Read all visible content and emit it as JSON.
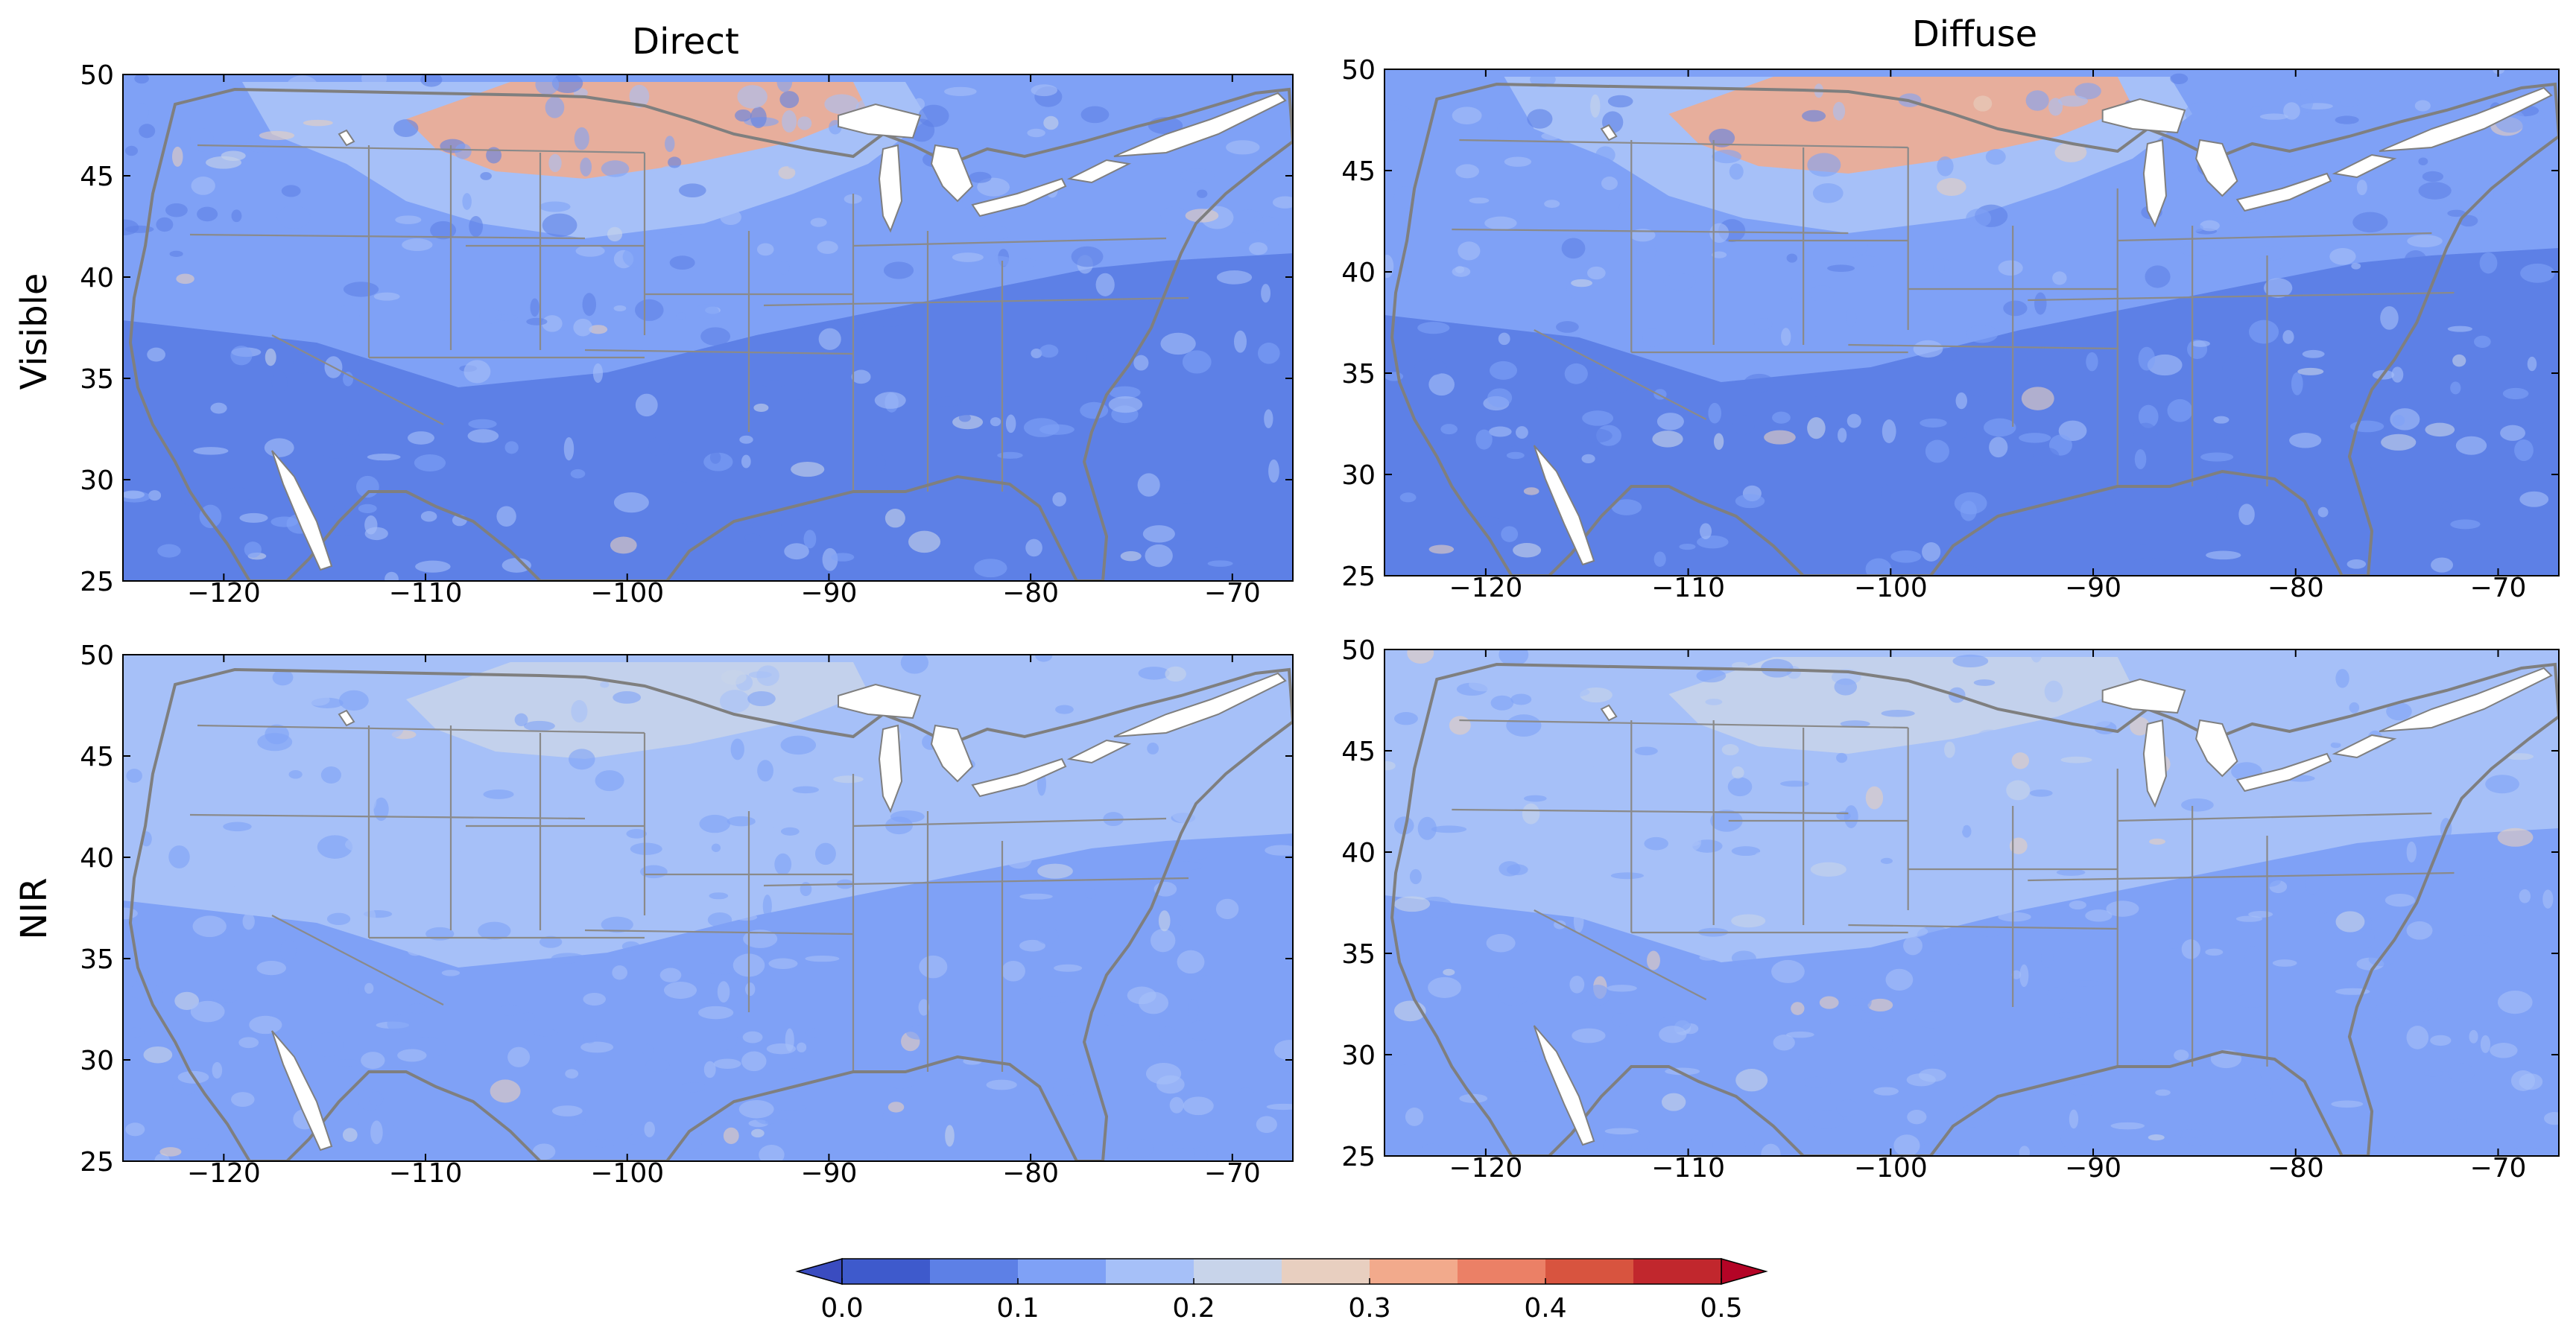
{
  "figure": {
    "column_titles": [
      "Direct",
      "Diffuse"
    ],
    "row_labels": [
      "Visible",
      "NIR"
    ]
  },
  "map_axes": {
    "lon_range": [
      -125,
      -67
    ],
    "lat_range": [
      25,
      50
    ],
    "x_ticks": [
      -120,
      -110,
      -100,
      -90,
      -80,
      -70
    ],
    "x_tick_labels": [
      "−120",
      "−110",
      "−100",
      "−90",
      "−80",
      "−70"
    ],
    "y_ticks": [
      25,
      30,
      35,
      40,
      45,
      50
    ],
    "y_tick_labels": [
      "25",
      "30",
      "35",
      "40",
      "45",
      "50"
    ],
    "coastline_color": "#7f7f7f",
    "state_border_color": "#8a8a8a",
    "water_color": "#ffffff"
  },
  "colorbar": {
    "range": [
      0.0,
      0.5
    ],
    "ticks": [
      0.0,
      0.1,
      0.2,
      0.3,
      0.4,
      0.5
    ],
    "tick_labels": [
      "0.0",
      "0.1",
      "0.2",
      "0.3",
      "0.4",
      "0.5"
    ],
    "levels": [
      0.0,
      0.05,
      0.1,
      0.15,
      0.2,
      0.25,
      0.3,
      0.35,
      0.4,
      0.45,
      0.5
    ],
    "colors": [
      "#3e5acc",
      "#5d80e6",
      "#7fa1f6",
      "#a6c0f8",
      "#c8d4ea",
      "#e8cfc0",
      "#f2aa8c",
      "#eb8066",
      "#d8543f",
      "#c1272d"
    ],
    "under_color": "#3a4cc0",
    "over_color": "#b40426"
  },
  "panels": [
    {
      "id": "visible-direct",
      "row": "Visible",
      "column": "Direct",
      "dominant_class": [
        1,
        2,
        3
      ],
      "north_plains_class": 6
    },
    {
      "id": "visible-diffuse",
      "row": "Visible",
      "column": "Diffuse",
      "dominant_class": [
        1,
        2,
        3
      ],
      "north_plains_class": 6
    },
    {
      "id": "nir-direct",
      "row": "NIR",
      "column": "Direct",
      "dominant_class": [
        2,
        3
      ],
      "north_plains_class": 4
    },
    {
      "id": "nir-diffuse",
      "row": "NIR",
      "column": "Diffuse",
      "dominant_class": [
        2,
        3
      ],
      "north_plains_class": 4
    }
  ]
}
